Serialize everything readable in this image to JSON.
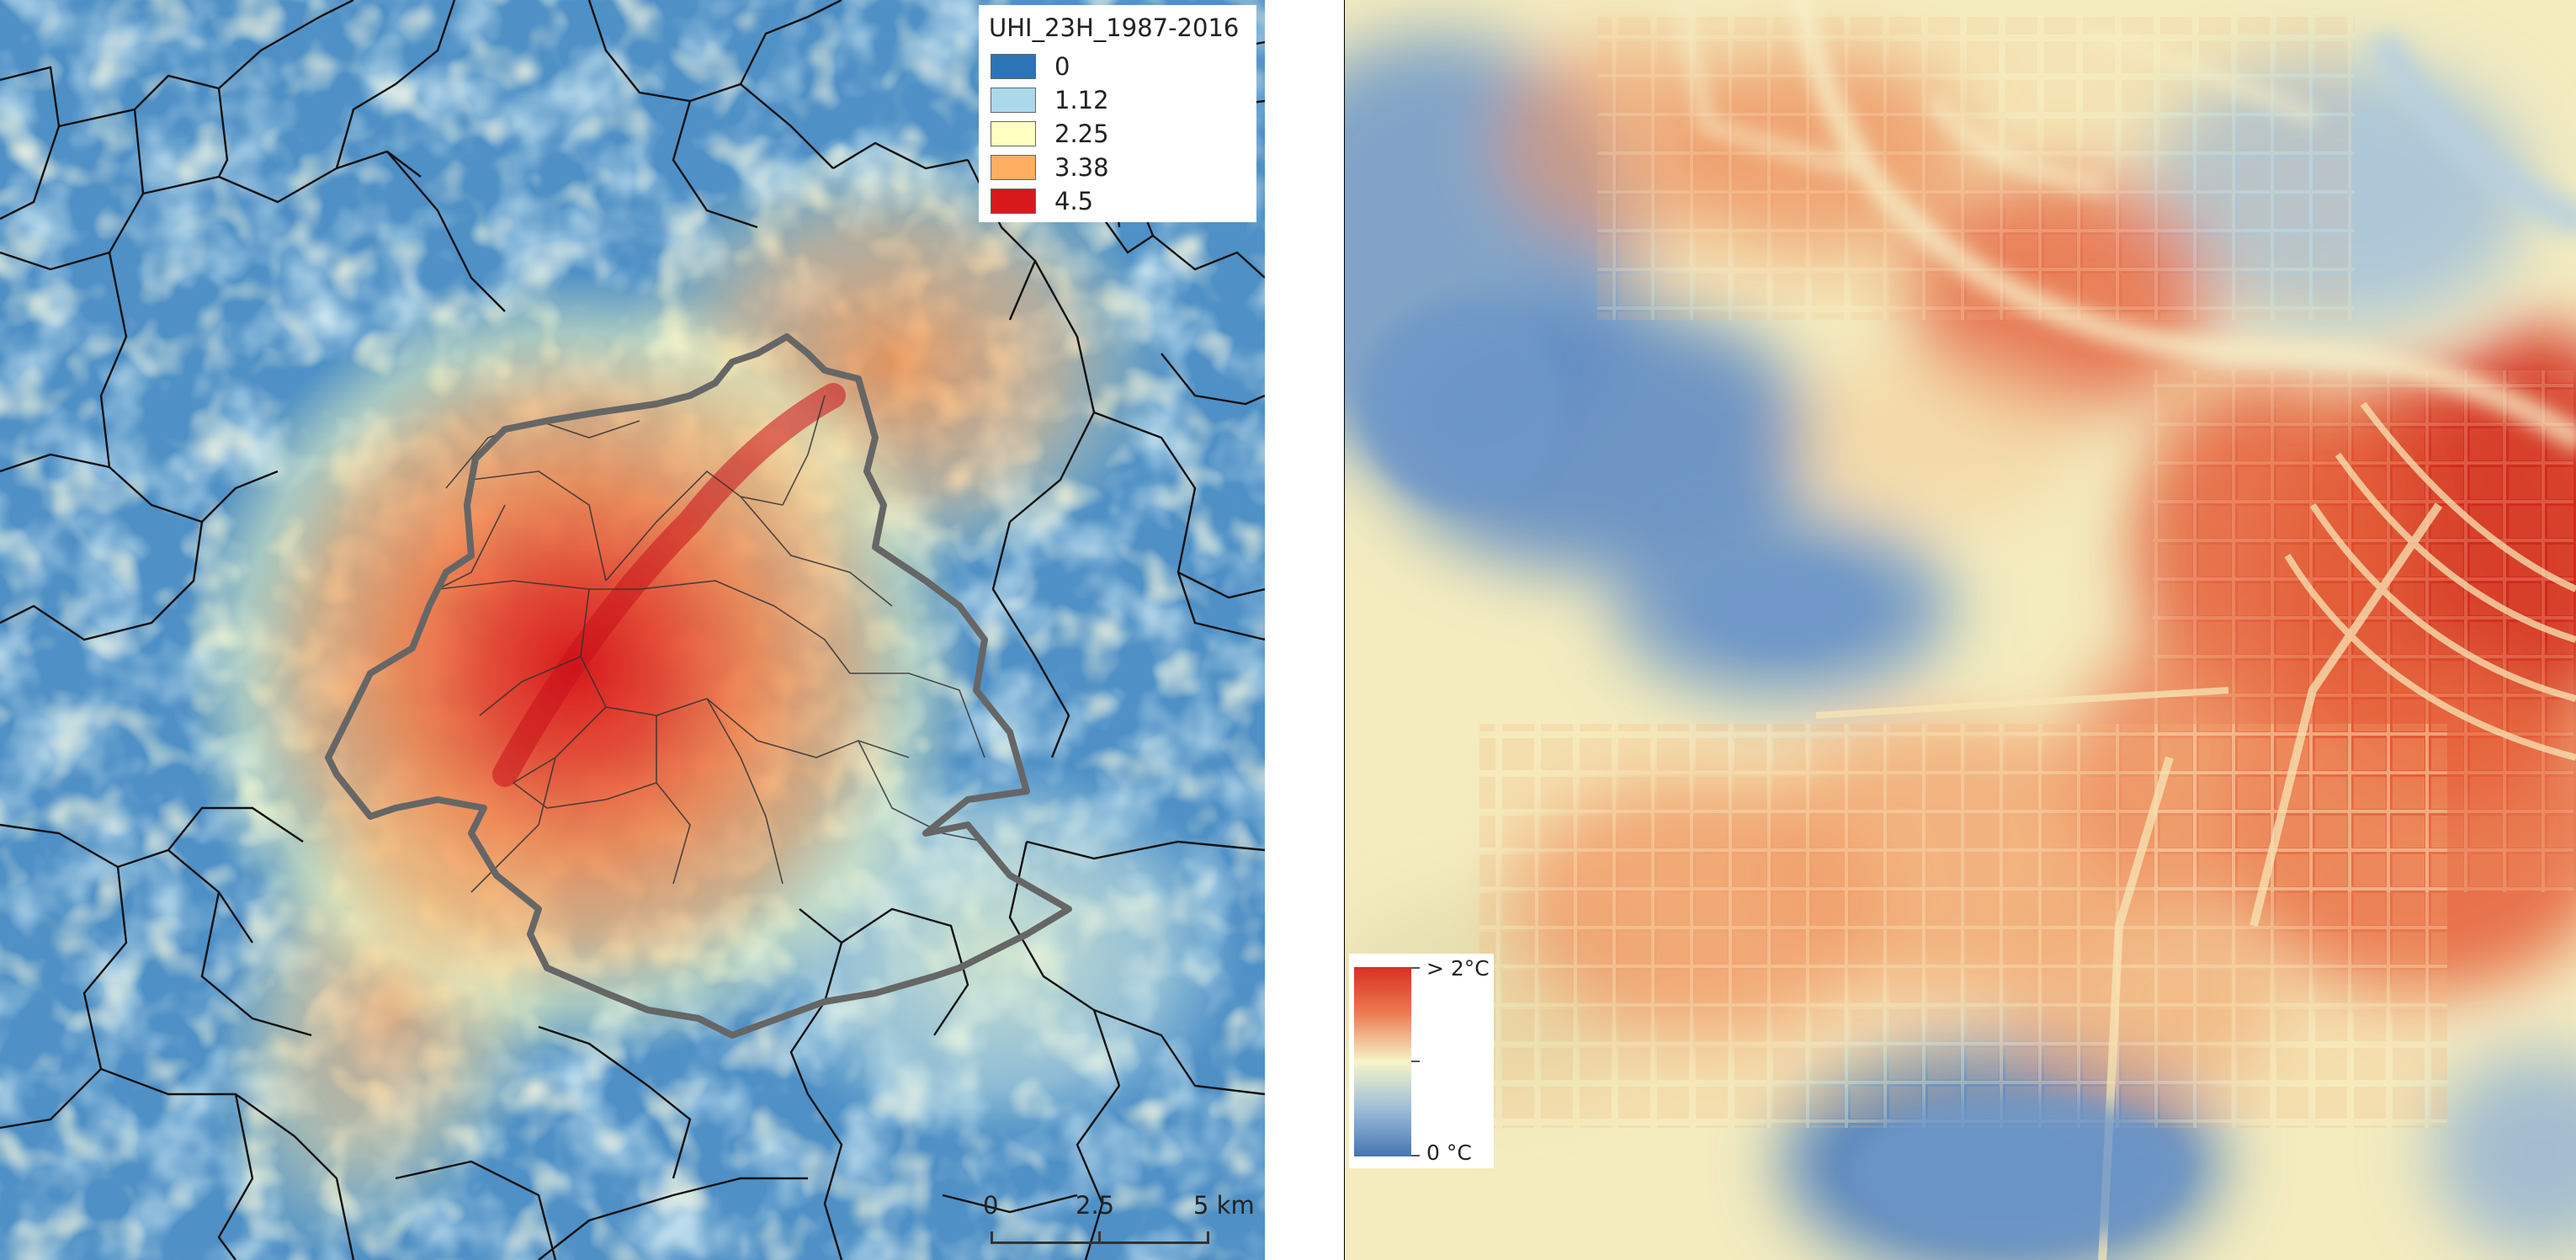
{
  "left_map": {
    "legend": {
      "title": "UHI_23H_1987-2016",
      "items": [
        {
          "label": "0",
          "color": "#2c74b5"
        },
        {
          "label": "1.12",
          "color": "#abd9e9"
        },
        {
          "label": "2.25",
          "color": "#ffffbf"
        },
        {
          "label": "3.38",
          "color": "#fdae61"
        },
        {
          "label": "4.5",
          "color": "#d7191c"
        }
      ]
    },
    "scale_bar": {
      "labels": [
        "0",
        "2.5",
        "5 km"
      ]
    },
    "colors": {
      "background": "#4f90c6",
      "cool": "#abd9e9",
      "mild": "#ffffbf",
      "warm": "#fdae61",
      "hot": "#d7191c",
      "boundary": "#666666",
      "municipal_lines": "#111111"
    }
  },
  "right_map": {
    "legend": {
      "max_label": "> 2°C",
      "min_label": "0 °C",
      "gradient": [
        "#d7301f",
        "#ee7d52",
        "#f7f4c9",
        "#9dbed8",
        "#4575b4"
      ]
    },
    "colors": {
      "cool": "#6f98c8",
      "mild": "#f6f2c3",
      "warm": "#ee8a5a",
      "hot": "#d63a26"
    }
  }
}
